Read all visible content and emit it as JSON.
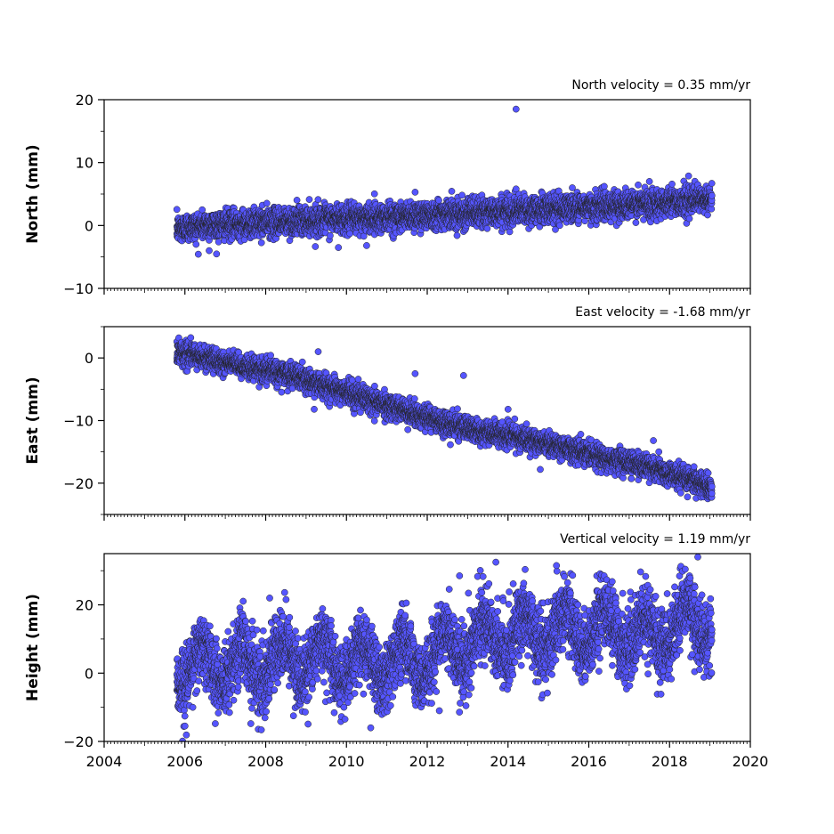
{
  "chart_data": [
    {
      "type": "scatter",
      "title": "North velocity = 0.35 mm/yr",
      "ylabel": "North (mm)",
      "xlim": [
        2004,
        2020
      ],
      "ylim": [
        -10,
        20
      ],
      "yticks": [
        -10,
        0,
        10,
        20
      ],
      "xtick_labels_shown": false,
      "marker_color": "#5555ff",
      "edge_color": "#222222",
      "series": [
        {
          "start_year": 2005.8,
          "end_year": 2019.05,
          "x": [
            2005.8,
            2006.5,
            2007.5,
            2008.5,
            2009.5,
            2010.5,
            2011.5,
            2012.5,
            2013.5,
            2014.5,
            2015.5,
            2016.5,
            2017.5,
            2018.5,
            2019.05
          ],
          "y": [
            -0.5,
            0.0,
            0.3,
            0.6,
            1.0,
            1.2,
            1.5,
            1.9,
            2.1,
            2.4,
            2.8,
            3.1,
            3.5,
            3.9,
            4.1
          ],
          "scatter_sd": 1.1,
          "outliers": [
            {
              "x": 2014.2,
              "y": 18.5
            },
            {
              "x": 2014.2,
              "y": 5.8
            },
            {
              "x": 2011.7,
              "y": 5.3
            },
            {
              "x": 2017.5,
              "y": 7.0
            },
            {
              "x": 2006.6,
              "y": -4.0
            },
            {
              "x": 2009.8,
              "y": -3.5
            },
            {
              "x": 2010.5,
              "y": -3.2
            }
          ]
        }
      ]
    },
    {
      "type": "scatter",
      "title": "East velocity = -1.68 mm/yr",
      "ylabel": "East (mm)",
      "xlim": [
        2004,
        2020
      ],
      "ylim": [
        -25,
        5
      ],
      "yticks": [
        -20,
        -10,
        0
      ],
      "xtick_labels_shown": false,
      "marker_color": "#5555ff",
      "edge_color": "#222222",
      "series": [
        {
          "start_year": 2005.8,
          "end_year": 2019.05,
          "x": [
            2005.8,
            2006.5,
            2007.5,
            2008.5,
            2009.5,
            2010.5,
            2011.5,
            2012.5,
            2013.5,
            2014.5,
            2015.5,
            2016.5,
            2017.5,
            2018.5,
            2019.05
          ],
          "y": [
            1.0,
            0.0,
            -1.5,
            -2.5,
            -4.5,
            -6.5,
            -8.5,
            -10.5,
            -12.0,
            -13.0,
            -14.5,
            -16.0,
            -17.5,
            -19.5,
            -20.5
          ],
          "scatter_sd": 0.9,
          "outliers": [
            {
              "x": 2009.3,
              "y": 1.0
            },
            {
              "x": 2011.7,
              "y": -2.5
            },
            {
              "x": 2012.9,
              "y": -2.8
            },
            {
              "x": 2014.0,
              "y": -8.2
            },
            {
              "x": 2009.2,
              "y": -8.2
            },
            {
              "x": 2017.6,
              "y": -13.2
            },
            {
              "x": 2014.8,
              "y": -17.8
            }
          ]
        }
      ]
    },
    {
      "type": "scatter",
      "title": "Vertical velocity = 1.19 mm/yr",
      "ylabel": "Height (mm)",
      "xlim": [
        2004,
        2020
      ],
      "ylim": [
        -20,
        35
      ],
      "yticks": [
        -20,
        0,
        20
      ],
      "xticks": [
        2004,
        2006,
        2008,
        2010,
        2012,
        2014,
        2016,
        2018,
        2020
      ],
      "xtick_labels_shown": true,
      "marker_color": "#5555ff",
      "edge_color": "#222222",
      "series": [
        {
          "start_year": 2005.8,
          "end_year": 2019.05,
          "x": [
            2005.8,
            2006.5,
            2007.5,
            2008.5,
            2009.5,
            2010.5,
            2011.5,
            2012.5,
            2013.5,
            2014.5,
            2015.5,
            2016.5,
            2017.5,
            2018.5,
            2019.05
          ],
          "y": [
            1.0,
            3.0,
            2.0,
            4.0,
            4.0,
            3.0,
            3.0,
            7.0,
            10.0,
            12.0,
            12.0,
            13.0,
            11.0,
            15.0,
            15.0
          ],
          "scatter_sd": 5.0,
          "seasonal_amp": 5.5,
          "outliers": [
            {
              "x": 2013.7,
              "y": 32.5
            },
            {
              "x": 2018.7,
              "y": 34.0
            },
            {
              "x": 2015.2,
              "y": 31.5
            },
            {
              "x": 2012.8,
              "y": 28.5
            },
            {
              "x": 2006.0,
              "y": -15.5
            },
            {
              "x": 2010.6,
              "y": -16.0
            },
            {
              "x": 2008.1,
              "y": 22.0
            },
            {
              "x": 2012.3,
              "y": -11.0
            }
          ]
        }
      ]
    }
  ]
}
